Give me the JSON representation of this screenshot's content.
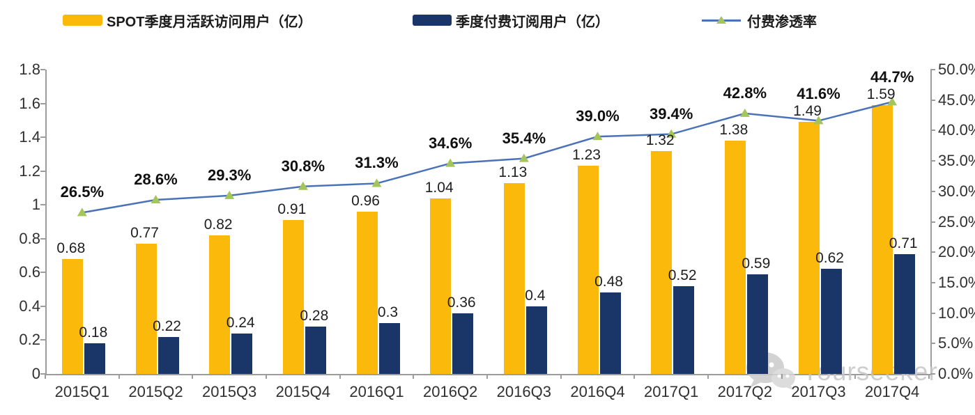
{
  "legend": [
    {
      "label": "SPOT季度月活跃访问用户（亿）",
      "type": "bar",
      "color": "#FBBA0B"
    },
    {
      "label": "季度付费订阅用户（亿）",
      "type": "bar",
      "color": "#1A3668"
    },
    {
      "label": "付费渗透率",
      "type": "line",
      "color": "#4A72B8",
      "marker_color": "#A3C55C"
    }
  ],
  "chart_data": {
    "type": "bar",
    "subtype": "grouped-bars-with-line-combo",
    "title": "",
    "categories": [
      "2015Q1",
      "2015Q2",
      "2015Q3",
      "2015Q4",
      "2016Q1",
      "2016Q2",
      "2016Q3",
      "2016Q4",
      "2017Q1",
      "2017Q2",
      "2017Q3",
      "2017Q4"
    ],
    "series": [
      {
        "name": "SPOT季度月活跃访问用户（亿）",
        "type": "bar",
        "axis": "left",
        "color": "#FBBA0B",
        "values": [
          0.68,
          0.77,
          0.82,
          0.91,
          0.96,
          1.04,
          1.13,
          1.23,
          1.32,
          1.38,
          1.49,
          1.59
        ],
        "labels": [
          "0.68",
          "0.77",
          "0.82",
          "0.91",
          "0.96",
          "1.04",
          "1.13",
          "1.23",
          "1.32",
          "1.38",
          "1.49",
          "1.59"
        ]
      },
      {
        "name": "季度付费订阅用户（亿）",
        "type": "bar",
        "axis": "left",
        "color": "#1A3668",
        "values": [
          0.18,
          0.22,
          0.24,
          0.28,
          0.3,
          0.36,
          0.4,
          0.48,
          0.52,
          0.59,
          0.62,
          0.71
        ],
        "labels": [
          "0.18",
          "0.22",
          "0.24",
          "0.28",
          "0.3",
          "0.36",
          "0.4",
          "0.48",
          "0.52",
          "0.59",
          "0.62",
          "0.71"
        ]
      },
      {
        "name": "付费渗透率",
        "type": "line",
        "axis": "right",
        "color": "#4A72B8",
        "marker": "triangle-up",
        "marker_color": "#A3C55C",
        "values": [
          26.5,
          28.6,
          29.3,
          30.8,
          31.3,
          34.6,
          35.4,
          39.0,
          39.4,
          42.8,
          41.6,
          44.7
        ],
        "labels": [
          "26.5%",
          "28.6%",
          "29.3%",
          "30.8%",
          "31.3%",
          "34.6%",
          "35.4%",
          "39.0%",
          "39.4%",
          "42.8%",
          "41.6%",
          "44.7%"
        ]
      }
    ],
    "left_axis": {
      "min": 0,
      "max": 1.8,
      "step": 0.2,
      "ticks_top_to_bottom": [
        "1.8",
        "1.6",
        "1.4",
        "1.2",
        "1",
        "0.8",
        "0.6",
        "0.4",
        "0.2",
        "0"
      ]
    },
    "right_axis": {
      "min": 0,
      "max": 50,
      "step": 5,
      "unit": "%",
      "ticks_top_to_bottom": [
        "50.0%",
        "45.0%",
        "40.0%",
        "35.0%",
        "30.0%",
        "25.0%",
        "20.0%",
        "15.0%",
        "10.0%",
        "5.0%",
        "0.0%"
      ]
    },
    "grid": false,
    "legend_position": "top"
  },
  "watermark": {
    "text": "Yourseeker",
    "icon": "wechat-icon"
  },
  "colors": {
    "bar_mau": "#FBBA0B",
    "bar_subs": "#1A3668",
    "line": "#4A72B8",
    "marker": "#A3C55C",
    "axis": "#9C9C9C",
    "watermark": "#C6C6C6"
  }
}
